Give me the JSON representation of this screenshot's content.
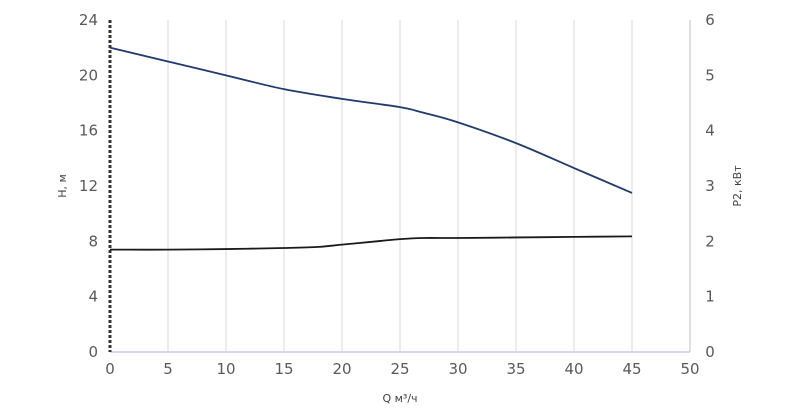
{
  "chart_data": {
    "type": "line",
    "title": "",
    "xlabel": "Q м³/ч",
    "ylabel": "H, м",
    "y2label": "P2, кВт",
    "xlim": [
      0,
      50
    ],
    "ylim": [
      0,
      24
    ],
    "y2lim": [
      0,
      6
    ],
    "x_ticks": [
      "0",
      "5",
      "10",
      "15",
      "20",
      "25",
      "30",
      "35",
      "40",
      "45",
      "50"
    ],
    "y_ticks": [
      "0",
      "4",
      "8",
      "12",
      "16",
      "20",
      "24"
    ],
    "y2_ticks": [
      "0",
      "1",
      "2",
      "3",
      "4",
      "5",
      "6"
    ],
    "grid": true,
    "legend": "none",
    "series": [
      {
        "axis": "left",
        "color": "#1f3a6e",
        "x": [
          0,
          5,
          10,
          15,
          20,
          25,
          27,
          30,
          35,
          40,
          45
        ],
        "values": [
          22.0,
          21.0,
          20.0,
          19.0,
          18.3,
          17.7,
          17.3,
          16.6,
          15.1,
          13.3,
          11.5
        ]
      },
      {
        "axis": "right",
        "color": "#1a1a1a",
        "x": [
          0,
          5,
          10,
          15,
          18,
          20,
          23,
          25,
          27,
          30,
          35,
          40,
          45
        ],
        "values": [
          1.85,
          1.85,
          1.86,
          1.88,
          1.9,
          1.94,
          2.0,
          2.04,
          2.06,
          2.06,
          2.07,
          2.08,
          2.09
        ]
      }
    ]
  }
}
